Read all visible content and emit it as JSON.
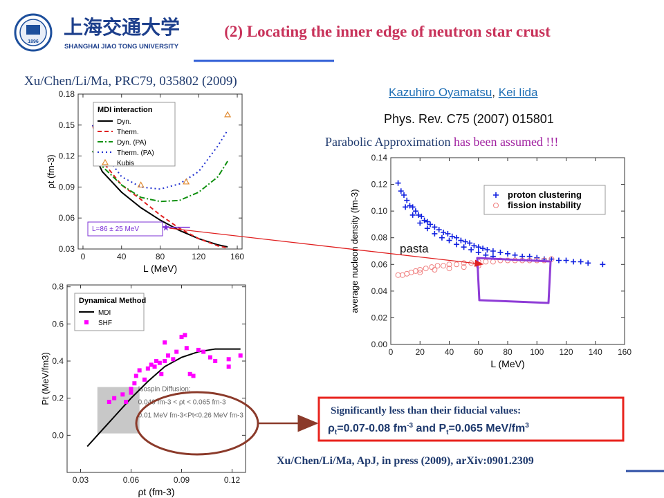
{
  "header": {
    "title": "(2) Locating the inner edge of neutron star crust",
    "university_cn": "上海交通大学",
    "university_en": "SHANGHAI JIAO TONG UNIVERSITY",
    "logo_year": "1896"
  },
  "references": {
    "left": "Xu/Chen/Li/Ma, PRC79, 035802 (2009)",
    "authors": [
      "Kazuhiro Oyamatsu",
      "Kei Iida"
    ],
    "author_sep": ", ",
    "journal": "Phys. Rev. C75 (2007) 015801",
    "note_a": "Parabolic Approximation",
    "note_b": "has been assumed !!!",
    "bottom": "Xu/Chen/Li/Ma, ApJ, in press (2009), arXiv:0901.2309"
  },
  "callout": {
    "line1": "Significantly less than their fiducial values:",
    "line2": [
      "ρ",
      "t",
      "=0.07-0.08 fm",
      "-3",
      " and P",
      "t",
      "=0.065 MeV/fm",
      "3"
    ]
  },
  "charts": [
    {
      "type": "line",
      "legend_title": "MDI interaction",
      "x_label": "L (MeV)",
      "y_label": "ρt (fm-3)",
      "xlim": [
        -5,
        165
      ],
      "xticks": [
        0,
        40,
        80,
        120,
        160
      ],
      "ylim": [
        0.03,
        0.18
      ],
      "yticks": [
        0.03,
        0.06,
        0.09,
        0.12,
        0.15,
        0.18
      ],
      "annotation": "L=86 ± 25 MeV",
      "constraint": {
        "x": 86,
        "xerr": 25,
        "y": 0.051,
        "color": "#7b2fd6"
      },
      "series": [
        {
          "name": "Dyn.",
          "color": "#000000",
          "style": "solid",
          "x": [
            10,
            20,
            40,
            60,
            80,
            100,
            120,
            140,
            150
          ],
          "y": [
            0.125,
            0.105,
            0.085,
            0.07,
            0.058,
            0.048,
            0.04,
            0.034,
            0.032
          ]
        },
        {
          "name": "Therm.",
          "color": "#e02020",
          "style": "dashed",
          "x": [
            10,
            20,
            40,
            60,
            80,
            100,
            120,
            140,
            150
          ],
          "y": [
            0.15,
            0.115,
            0.092,
            0.078,
            0.063,
            0.05,
            0.04,
            0.033,
            0.031
          ]
        },
        {
          "name": "Dyn. (PA)",
          "color": "#109010",
          "style": "dashdot",
          "x": [
            10,
            20,
            40,
            60,
            80,
            100,
            120,
            140,
            150
          ],
          "y": [
            0.125,
            0.11,
            0.092,
            0.08,
            0.076,
            0.077,
            0.085,
            0.1,
            0.115
          ]
        },
        {
          "name": "Therm. (PA)",
          "color": "#2030d0",
          "style": "dotted",
          "x": [
            10,
            20,
            40,
            60,
            80,
            100,
            120,
            140,
            150
          ],
          "y": [
            0.15,
            0.125,
            0.1,
            0.09,
            0.088,
            0.093,
            0.105,
            0.13,
            0.145
          ]
        },
        {
          "name": "Kubis",
          "color": "#e08a30",
          "style": "triangle",
          "x": [
            15,
            60,
            107,
            150
          ],
          "y": [
            0.118,
            0.092,
            0.095,
            0.16
          ]
        }
      ]
    },
    {
      "type": "scatter",
      "x_label": "L (MeV)",
      "y_label": "average nucleon density (fm-3)",
      "xlim": [
        0,
        160
      ],
      "xticks": [
        0,
        20,
        40,
        60,
        80,
        100,
        120,
        140,
        160
      ],
      "ylim": [
        0,
        0.14
      ],
      "yticks": [
        {
          "value": 0,
          "label": "0.00"
        },
        0.02,
        0.04,
        0.06,
        0.08,
        {
          "value": 0.1,
          "label": "0.10"
        },
        0.12,
        0.14
      ],
      "annotation": "pasta",
      "series": [
        {
          "name": "proton clustering",
          "color": "#1020e0",
          "style": "plus",
          "x": [
            5,
            7,
            9,
            11,
            13,
            15,
            17,
            19,
            21,
            23,
            25,
            27,
            30,
            33,
            36,
            39,
            42,
            45,
            48,
            51,
            54,
            57,
            60,
            63,
            66,
            70,
            75,
            80,
            85,
            90,
            95,
            100,
            105,
            110,
            115,
            120,
            125,
            130,
            135,
            145,
            10,
            15,
            20,
            25,
            30,
            35,
            40,
            45,
            50,
            55,
            60,
            65,
            70
          ],
          "y": [
            0.121,
            0.115,
            0.112,
            0.108,
            0.104,
            0.103,
            0.1,
            0.097,
            0.096,
            0.093,
            0.092,
            0.09,
            0.088,
            0.086,
            0.084,
            0.083,
            0.081,
            0.08,
            0.078,
            0.077,
            0.076,
            0.074,
            0.073,
            0.072,
            0.071,
            0.07,
            0.069,
            0.068,
            0.067,
            0.066,
            0.066,
            0.065,
            0.064,
            0.064,
            0.063,
            0.063,
            0.062,
            0.062,
            0.061,
            0.06,
            0.103,
            0.097,
            0.091,
            0.087,
            0.083,
            0.08,
            0.078,
            0.075,
            0.073,
            0.071,
            0.069,
            0.067,
            0.066
          ]
        },
        {
          "name": "fission instability",
          "color": "#f08080",
          "style": "circle",
          "x": [
            5,
            8,
            11,
            14,
            17,
            20,
            24,
            28,
            32,
            36,
            40,
            45,
            50,
            55,
            60,
            65,
            70,
            75,
            80,
            85,
            90,
            95,
            100,
            105,
            110,
            20,
            30,
            40,
            50,
            60
          ],
          "y": [
            0.052,
            0.052,
            0.053,
            0.054,
            0.055,
            0.056,
            0.057,
            0.058,
            0.059,
            0.059,
            0.06,
            0.06,
            0.061,
            0.061,
            0.062,
            0.062,
            0.062,
            0.063,
            0.063,
            0.063,
            0.063,
            0.063,
            0.063,
            0.063,
            0.064,
            0.054,
            0.056,
            0.057,
            0.058,
            0.059
          ]
        }
      ]
    },
    {
      "type": "line",
      "legend_title": "Dynamical Method",
      "x_label": "ρt (fm-3)",
      "y_label": "Pt (MeV/fm3)",
      "xlim": [
        0.022,
        0.128
      ],
      "xticks": [
        0.03,
        0.06,
        0.09,
        0.12
      ],
      "ylim": [
        -0.2,
        0.81
      ],
      "yticks": [
        {
          "value": 0,
          "label": "0.0"
        },
        0.2,
        0.4,
        0.6,
        0.8
      ],
      "region": {
        "x": [
          0.04,
          0.065
        ],
        "y": [
          0.01,
          0.26
        ],
        "color": "#c8c8c8"
      },
      "region_text": [
        "Isospin Diffusion:",
        "0.040 fm-3 < ρt < 0.065 fm-3",
        "0.01 MeV fm-3<Pt<0.26 MeV fm-3"
      ],
      "series": [
        {
          "name": "MDI",
          "color": "#000000",
          "style": "solid",
          "x": [
            0.034,
            0.04,
            0.045,
            0.05,
            0.06,
            0.07,
            0.075,
            0.08,
            0.09,
            0.1,
            0.11,
            0.125
          ],
          "y": [
            -0.06,
            0.0,
            0.05,
            0.1,
            0.2,
            0.29,
            0.33,
            0.37,
            0.42,
            0.45,
            0.465,
            0.465
          ]
        },
        {
          "name": "SHF",
          "color": "#ff00ff",
          "style": "square",
          "x": [
            0.047,
            0.05,
            0.055,
            0.057,
            0.06,
            0.062,
            0.063,
            0.065,
            0.068,
            0.07,
            0.072,
            0.074,
            0.075,
            0.077,
            0.078,
            0.08,
            0.08,
            0.082,
            0.085,
            0.087,
            0.09,
            0.092,
            0.093,
            0.095,
            0.097,
            0.1,
            0.103,
            0.107,
            0.11,
            0.118,
            0.125,
            0.118,
            0.06
          ],
          "y": [
            0.18,
            0.2,
            0.22,
            0.18,
            0.23,
            0.28,
            0.32,
            0.35,
            0.3,
            0.36,
            0.38,
            0.37,
            0.4,
            0.39,
            0.33,
            0.4,
            0.5,
            0.43,
            0.41,
            0.45,
            0.53,
            0.54,
            0.47,
            0.33,
            0.32,
            0.46,
            0.45,
            0.42,
            0.4,
            0.41,
            0.43,
            0.37,
            0.25
          ]
        }
      ]
    }
  ]
}
